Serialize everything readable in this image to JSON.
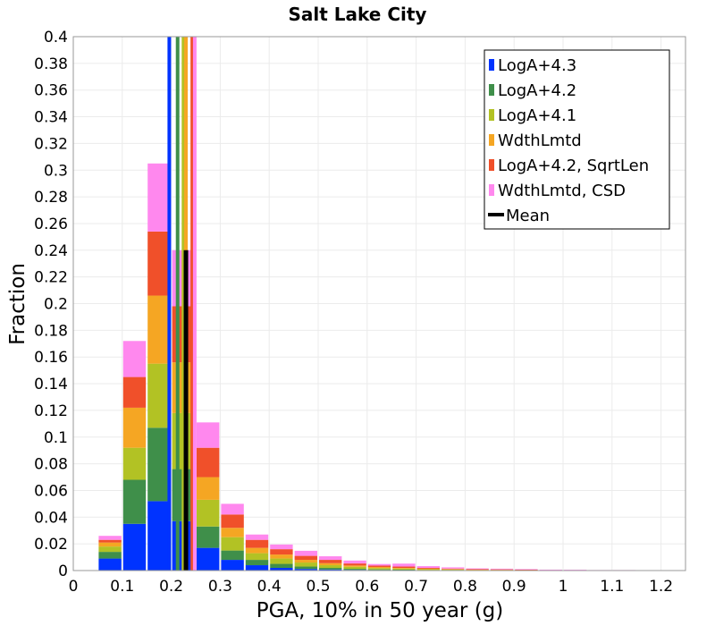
{
  "chart_data": {
    "type": "bar",
    "stacked": true,
    "title": "Salt Lake City",
    "xlabel": "PGA, 10% in 50 year (g)",
    "ylabel": "Fraction",
    "xlim": [
      0,
      1.25
    ],
    "ylim": [
      0,
      0.4
    ],
    "xticks": [
      "0",
      "0.1",
      "0.2",
      "0.3",
      "0.4",
      "0.5",
      "0.6",
      "0.7",
      "0.8",
      "0.9",
      "1",
      "1.1",
      "1.2"
    ],
    "xtick_values": [
      0,
      0.1,
      0.2,
      0.3,
      0.4,
      0.5,
      0.6,
      0.7,
      0.8,
      0.9,
      1.0,
      1.1,
      1.2
    ],
    "yticks": [
      "0",
      "0.02",
      "0.04",
      "0.06",
      "0.08",
      "0.1",
      "0.12",
      "0.14",
      "0.16",
      "0.18",
      "0.2",
      "0.22",
      "0.24",
      "0.26",
      "0.28",
      "0.3",
      "0.32",
      "0.34",
      "0.36",
      "0.38",
      "0.4"
    ],
    "ytick_values": [
      0,
      0.02,
      0.04,
      0.06,
      0.08,
      0.1,
      0.12,
      0.14,
      0.16,
      0.18,
      0.2,
      0.22,
      0.24,
      0.26,
      0.28,
      0.3,
      0.32,
      0.34,
      0.36,
      0.38,
      0.4
    ],
    "grid": true,
    "legend_position": "top-right",
    "bin_width": 0.05,
    "bin_starts": [
      0.05,
      0.1,
      0.15,
      0.2,
      0.25,
      0.3,
      0.35,
      0.4,
      0.45,
      0.5,
      0.55,
      0.6,
      0.65,
      0.7,
      0.75,
      0.8,
      0.85,
      0.9,
      0.95,
      1.0,
      1.05,
      1.1,
      1.15,
      1.2
    ],
    "series": [
      {
        "name": "LogA+4.3",
        "color": "#0033ff",
        "values": [
          0.009,
          0.035,
          0.052,
          0.037,
          0.017,
          0.008,
          0.004,
          0.002,
          0.0012,
          0.0008,
          0.0005,
          0.0004,
          0.0003,
          0.0002,
          0.0002,
          0.0001,
          0.0001,
          0.0001,
          0.0,
          0.0,
          0.0,
          0.0,
          0.0,
          0.0
        ]
      },
      {
        "name": "LogA+4.2",
        "color": "#3f8f4a",
        "values": [
          0.005,
          0.033,
          0.055,
          0.039,
          0.016,
          0.007,
          0.004,
          0.003,
          0.0018,
          0.0012,
          0.0008,
          0.0005,
          0.0004,
          0.0002,
          0.0002,
          0.0001,
          0.0001,
          0.0001,
          0.0,
          0.0,
          0.0,
          0.0,
          0.0,
          0.0
        ]
      },
      {
        "name": "LogA+4.1",
        "color": "#b2c224",
        "values": [
          0.004,
          0.024,
          0.048,
          0.042,
          0.02,
          0.01,
          0.005,
          0.004,
          0.003,
          0.002,
          0.0015,
          0.001,
          0.0008,
          0.0006,
          0.0004,
          0.0003,
          0.0002,
          0.0002,
          0.0001,
          0.0001,
          0.0001,
          0.0001,
          0.0,
          0.0
        ]
      },
      {
        "name": "WdthLmtd",
        "color": "#f5a623",
        "values": [
          0.003,
          0.03,
          0.051,
          0.038,
          0.017,
          0.007,
          0.004,
          0.003,
          0.002,
          0.0015,
          0.001,
          0.0008,
          0.0005,
          0.0004,
          0.0003,
          0.0002,
          0.0002,
          0.0001,
          0.0001,
          0.0001,
          0.0,
          0.0,
          0.0,
          0.0
        ]
      },
      {
        "name": "LogA+4.2, SqrtLen",
        "color": "#f0502a",
        "values": [
          0.002,
          0.023,
          0.048,
          0.042,
          0.022,
          0.01,
          0.006,
          0.004,
          0.003,
          0.0025,
          0.0015,
          0.001,
          0.001,
          0.0006,
          0.0004,
          0.0003,
          0.0003,
          0.0002,
          0.0002,
          0.0001,
          0.0001,
          0.0001,
          0.0001,
          0.0
        ]
      },
      {
        "name": "WdthLmtd, CSD",
        "color": "#ff88ee",
        "values": [
          0.003,
          0.027,
          0.051,
          0.042,
          0.019,
          0.008,
          0.004,
          0.0035,
          0.0038,
          0.0027,
          0.0022,
          0.0012,
          0.0022,
          0.0013,
          0.0009,
          0.0006,
          0.0005,
          0.0004,
          0.0003,
          0.0003,
          0.0002,
          0.0002,
          0.0001,
          0.0001
        ]
      }
    ],
    "vertical_lines": [
      {
        "name": "LogA+4.3",
        "x": 0.196,
        "color": "#0033ff"
      },
      {
        "name": "LogA+4.2",
        "x": 0.213,
        "color": "#3f8f4a"
      },
      {
        "name": "LogA+4.1",
        "x": 0.225,
        "color": "#b2c224"
      },
      {
        "name": "WdthLmtd",
        "x": 0.23,
        "color": "#f5a623"
      },
      {
        "name": "LogA+4.2, SqrtLen",
        "x": 0.243,
        "color": "#f0502a"
      },
      {
        "name": "WdthLmtd, CSD",
        "x": 0.248,
        "color": "#ff88ee"
      },
      {
        "name": "Mean",
        "x": 0.23,
        "color": "#000000",
        "ymax": 0.24
      }
    ],
    "legend": [
      {
        "label": "LogA+4.3",
        "color": "#0033ff",
        "marker": "bar"
      },
      {
        "label": "LogA+4.2",
        "color": "#3f8f4a",
        "marker": "bar"
      },
      {
        "label": "LogA+4.1",
        "color": "#b2c224",
        "marker": "bar"
      },
      {
        "label": "WdthLmtd",
        "color": "#f5a623",
        "marker": "bar"
      },
      {
        "label": "LogA+4.2, SqrtLen",
        "color": "#f0502a",
        "marker": "bar"
      },
      {
        "label": "WdthLmtd, CSD",
        "color": "#ff88ee",
        "marker": "bar"
      },
      {
        "label": "Mean",
        "color": "#000000",
        "marker": "line"
      }
    ]
  }
}
